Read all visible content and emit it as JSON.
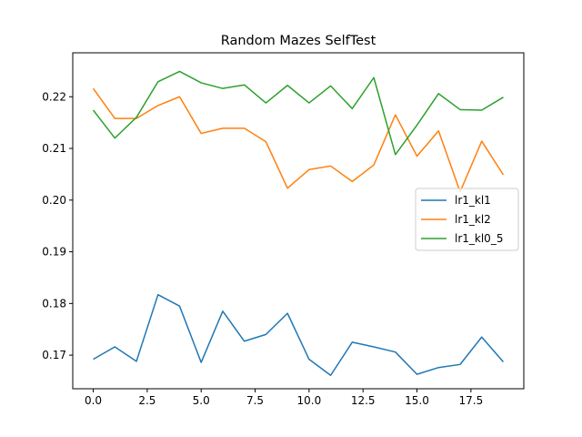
{
  "chart_data": {
    "type": "line",
    "title": "Random Mazes SelfTest",
    "xlabel": "",
    "ylabel": "",
    "xlim": [
      -0.95,
      19.95
    ],
    "ylim": [
      0.1635,
      0.2285
    ],
    "xticks": [
      0.0,
      2.5,
      5.0,
      7.5,
      10.0,
      12.5,
      15.0,
      17.5
    ],
    "xtick_labels": [
      "0.0",
      "2.5",
      "5.0",
      "7.5",
      "10.0",
      "12.5",
      "15.0",
      "17.5"
    ],
    "yticks": [
      0.17,
      0.18,
      0.19,
      0.2,
      0.21,
      0.22
    ],
    "ytick_labels": [
      "0.17",
      "0.18",
      "0.19",
      "0.20",
      "0.21",
      "0.22"
    ],
    "grid": false,
    "legend_position": "center-right",
    "x": [
      0,
      1,
      2,
      3,
      4,
      5,
      6,
      7,
      8,
      9,
      10,
      11,
      12,
      13,
      14,
      15,
      16,
      17,
      18,
      19
    ],
    "series": [
      {
        "name": "lr1_kl1",
        "color": "#1f77b4",
        "values": [
          0.1692,
          0.1716,
          0.1688,
          0.1817,
          0.1795,
          0.1686,
          0.1785,
          0.1727,
          0.174,
          0.1781,
          0.1692,
          0.1661,
          0.1725,
          0.1716,
          0.1706,
          0.1663,
          0.1676,
          0.1682,
          0.1735,
          0.1687
        ]
      },
      {
        "name": "lr1_kl2",
        "color": "#ff7f0e",
        "values": [
          0.2216,
          0.2158,
          0.2158,
          0.2183,
          0.22,
          0.2129,
          0.2139,
          0.2139,
          0.2113,
          0.2023,
          0.2059,
          0.2066,
          0.2036,
          0.2068,
          0.2165,
          0.2085,
          0.2134,
          0.2016,
          0.2114,
          0.2049
        ]
      },
      {
        "name": "lr1_kl0_5",
        "color": "#2ca02c",
        "values": [
          0.2174,
          0.212,
          0.216,
          0.2229,
          0.2249,
          0.2227,
          0.2216,
          0.2223,
          0.2188,
          0.2222,
          0.2188,
          0.2221,
          0.2177,
          0.2237,
          0.2088,
          0.2145,
          0.2206,
          0.2175,
          0.2174,
          0.2199
        ]
      }
    ]
  }
}
